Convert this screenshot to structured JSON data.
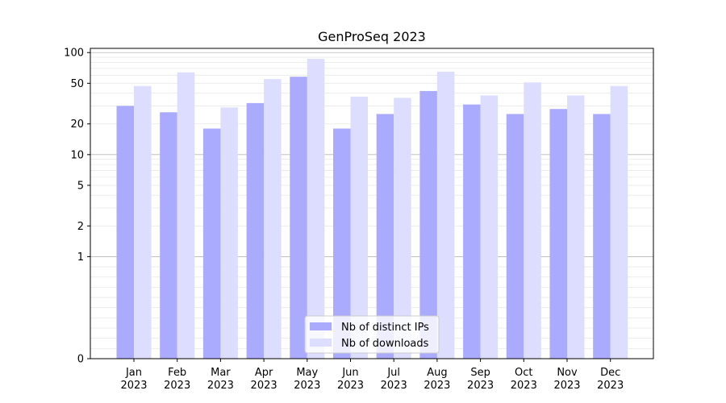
{
  "chart_data": {
    "type": "bar",
    "title": "GenProSeq 2023",
    "xlabel": "",
    "ylabel": "",
    "yscale": "symlog",
    "ylim": [
      0,
      110
    ],
    "yticks": [
      0,
      1,
      2,
      5,
      10,
      20,
      50,
      100
    ],
    "grid": true,
    "legend_position": "bottom-center",
    "categories": [
      {
        "month": "Jan",
        "year": "2023"
      },
      {
        "month": "Feb",
        "year": "2023"
      },
      {
        "month": "Mar",
        "year": "2023"
      },
      {
        "month": "Apr",
        "year": "2023"
      },
      {
        "month": "May",
        "year": "2023"
      },
      {
        "month": "Jun",
        "year": "2023"
      },
      {
        "month": "Jul",
        "year": "2023"
      },
      {
        "month": "Aug",
        "year": "2023"
      },
      {
        "month": "Sep",
        "year": "2023"
      },
      {
        "month": "Oct",
        "year": "2023"
      },
      {
        "month": "Nov",
        "year": "2023"
      },
      {
        "month": "Dec",
        "year": "2023"
      }
    ],
    "series": [
      {
        "name": "Nb of distinct IPs",
        "color": "#aaaaff",
        "values": [
          30,
          26,
          18,
          32,
          58,
          18,
          25,
          42,
          31,
          25,
          28,
          25
        ]
      },
      {
        "name": "Nb of downloads",
        "color": "#ddddff",
        "values": [
          47,
          64,
          29,
          55,
          87,
          37,
          36,
          65,
          38,
          51,
          38,
          47
        ]
      }
    ]
  }
}
